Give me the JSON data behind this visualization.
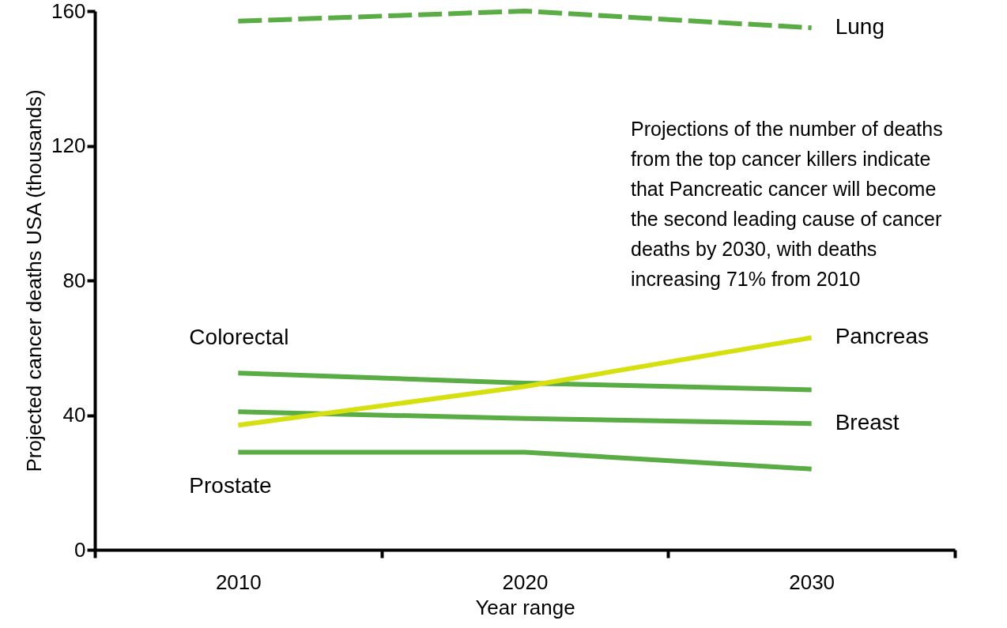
{
  "chart_data": {
    "type": "line",
    "xlabel": "Year range",
    "ylabel": "Projected cancer deaths USA (thousands)",
    "categories": [
      "2010",
      "2020",
      "2030"
    ],
    "series": [
      {
        "name": "Lung",
        "color": "#5aac44",
        "values": [
          157,
          160,
          155
        ],
        "line_style": "dashed"
      },
      {
        "name": "Colorectal",
        "color": "#5aac44",
        "values": [
          52.5,
          49.5,
          47.5
        ]
      },
      {
        "name": "Breast",
        "color": "#5aac44",
        "values": [
          41,
          39,
          37.5
        ]
      },
      {
        "name": "Prostate",
        "color": "#5aac44",
        "values": [
          29,
          29,
          24
        ]
      },
      {
        "name": "Pancreas",
        "color": "#d6e00e",
        "values": [
          37,
          48.5,
          63
        ]
      }
    ],
    "ylim": [
      0,
      160
    ],
    "yticks": [
      0,
      40,
      80,
      120,
      160
    ],
    "grid": false,
    "legend": false,
    "marker": "none",
    "line_style": "solid",
    "annotations": [
      "Projections of the number of deaths\nfrom the top cancer killers indicate\nthat Pancreatic cancer will become\nthe second leading cause of cancer\ndeaths by 2030, with deaths\nincreasing 71% from 2010"
    ]
  }
}
